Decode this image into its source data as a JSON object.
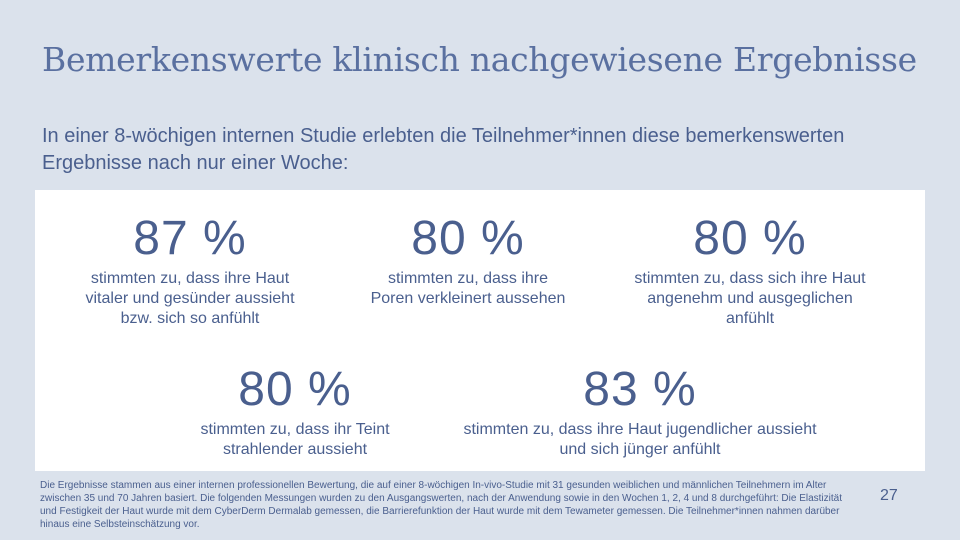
{
  "slide": {
    "title": "Bemerkenswerte klinisch nachgewiesene Ergebnisse",
    "subtitle": "In einer 8-wöchigen internen Studie erlebten die Teilnehmer*innen diese bemerkenswerten Ergebnisse nach nur einer Woche:",
    "stats": [
      {
        "value": "87 %",
        "description": "stimmten zu, dass ihre Haut vitaler und gesünder aussieht bzw. sich so anfühlt"
      },
      {
        "value": "80 %",
        "description": "stimmten zu, dass ihre Poren verkleinert aussehen"
      },
      {
        "value": "80 %",
        "description": "stimmten zu, dass sich ihre Haut angenehm und ausgeglichen anfühlt"
      },
      {
        "value": "80 %",
        "description": "stimmten zu, dass ihr Teint strahlender aussieht"
      },
      {
        "value": "83 %",
        "description": "stimmten zu, dass ihre Haut jugendlicher aussieht und sich jünger anfühlt"
      }
    ],
    "footnote": "Die Ergebnisse stammen aus einer internen professionellen Bewertung, die auf einer 8-wöchigen In-vivo-Studie mit 31 gesunden weiblichen und männlichen Teilnehmern im Alter zwischen 35 und 70 Jahren basiert. Die folgenden Messungen wurden zu den Ausgangswerten, nach der Anwendung sowie in den Wochen 1, 2, 4 und 8 durchgeführt: Die Elastizität und Festigkeit der Haut wurde mit dem CyberDerm Dermalab gemessen, die Barrierefunktion der Haut wurde mit dem Tewameter gemessen. Die Teilnehmer*innen nahmen darüber hinaus eine Selbsteinschätzung vor.",
    "page_number": "27"
  },
  "colors": {
    "background": "#dbe2ec",
    "panel": "#ffffff",
    "text": "#4a5f8e",
    "title": "#5a70a0"
  }
}
